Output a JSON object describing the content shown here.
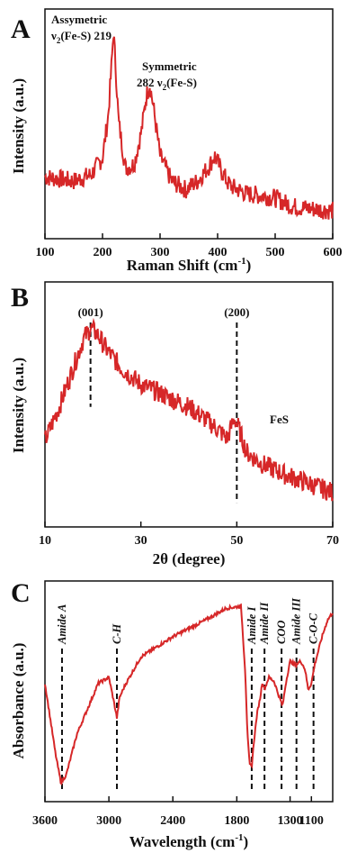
{
  "colors": {
    "line": "#d62728",
    "axis": "#111111",
    "marker": "#111111"
  },
  "chart_data": [
    {
      "type": "line",
      "panel": "A",
      "title": "",
      "xlabel": "Raman Shift (cm",
      "xlabel_sup": "-1",
      "xlabel_tail": ")",
      "ylabel": "Intensity (a.u.)",
      "xlim": [
        100,
        600
      ],
      "ylim": [
        0,
        1
      ],
      "y_ticks_shown": false,
      "xticks": [
        "100",
        "200",
        "300",
        "400",
        "500",
        "600"
      ],
      "xtick_values": [
        100,
        200,
        300,
        400,
        500,
        600
      ],
      "series": [
        {
          "x": [
            100,
            150,
            180,
            200,
            210,
            216,
            219,
            222,
            228,
            240,
            255,
            268,
            276,
            282,
            288,
            300,
            320,
            345,
            365,
            385,
            395,
            405,
            420,
            450,
            480,
            500,
            530,
            560,
            600
          ],
          "y": [
            0.26,
            0.24,
            0.27,
            0.35,
            0.55,
            0.8,
            0.95,
            0.82,
            0.52,
            0.3,
            0.32,
            0.48,
            0.64,
            0.7,
            0.6,
            0.36,
            0.24,
            0.2,
            0.24,
            0.31,
            0.36,
            0.3,
            0.22,
            0.18,
            0.17,
            0.16,
            0.12,
            0.11,
            0.1
          ]
        }
      ],
      "annotations": [
        {
          "line1": "Assymetric",
          "line2_pre": "ν",
          "line2_sub": "2",
          "line2_post": "(Fe-S) 219"
        },
        {
          "line1": "Symmetric",
          "line2_pre": "282 ν",
          "line2_sub": "2",
          "line2_post": "(Fe-S)"
        }
      ]
    },
    {
      "type": "line",
      "panel": "B",
      "title": "",
      "xlabel": "2θ (degree)",
      "ylabel": "Intensity (a.u.)",
      "xlim": [
        10,
        70
      ],
      "ylim": [
        0,
        1
      ],
      "y_ticks_shown": false,
      "xticks": [
        "10",
        "30",
        "50",
        "70"
      ],
      "xtick_values": [
        10,
        30,
        50,
        70
      ],
      "series": [
        {
          "name": "FeS",
          "x": [
            10,
            13,
            16,
            18,
            19.5,
            21,
            23,
            26,
            30,
            35,
            40,
            45,
            48,
            49.5,
            50.5,
            52,
            55,
            60,
            65,
            70
          ],
          "y": [
            0.35,
            0.5,
            0.68,
            0.8,
            0.85,
            0.82,
            0.75,
            0.67,
            0.6,
            0.55,
            0.5,
            0.42,
            0.36,
            0.45,
            0.4,
            0.3,
            0.25,
            0.2,
            0.16,
            0.12
          ]
        }
      ],
      "peaks": [
        {
          "label": "(001)",
          "x": 19.5
        },
        {
          "label": "(200)",
          "x": 50
        }
      ],
      "legend_text": "FeS"
    },
    {
      "type": "line",
      "panel": "C",
      "title": "",
      "xlabel": "Wavelength (cm",
      "xlabel_sup": "-1",
      "xlabel_tail": ")",
      "ylabel": "Absorbance (a.u.)",
      "xlim": [
        3600,
        900
      ],
      "ylim": [
        0,
        1
      ],
      "y_ticks_shown": false,
      "xticks": [
        "3600",
        "3000",
        "2400",
        "1800",
        "1300",
        "1100"
      ],
      "xtick_values": [
        3600,
        3000,
        2400,
        1800,
        1300,
        1100
      ],
      "series": [
        {
          "x": [
            3600,
            3500,
            3450,
            3400,
            3300,
            3100,
            3000,
            2950,
            2925,
            2900,
            2850,
            2700,
            2400,
            2100,
            1900,
            1760,
            1720,
            1700,
            1680,
            1660,
            1640,
            1610,
            1580,
            1560,
            1540,
            1500,
            1450,
            1400,
            1370,
            1340,
            1300,
            1250,
            1200,
            1160,
            1130,
            1100,
            1070,
            1030,
            1000,
            950,
            900
          ],
          "y": [
            0.55,
            0.2,
            0.06,
            0.1,
            0.3,
            0.55,
            0.58,
            0.45,
            0.38,
            0.48,
            0.54,
            0.68,
            0.78,
            0.86,
            0.92,
            0.93,
            0.6,
            0.3,
            0.15,
            0.14,
            0.26,
            0.4,
            0.48,
            0.56,
            0.52,
            0.58,
            0.56,
            0.48,
            0.44,
            0.55,
            0.66,
            0.64,
            0.66,
            0.62,
            0.52,
            0.55,
            0.64,
            0.72,
            0.78,
            0.86,
            0.9
          ]
        }
      ],
      "peaks": [
        {
          "label": "Amide A",
          "x": 3440
        },
        {
          "label": "C-H",
          "x": 2925
        },
        {
          "label": "Amide I",
          "x": 1660
        },
        {
          "label": "Amide II",
          "x": 1540
        },
        {
          "label": "COO",
          "x": 1380
        },
        {
          "label": "Amide III",
          "x": 1240
        },
        {
          "label": "C-O-C",
          "x": 1080
        }
      ],
      "peak_text": {
        "c_h_suffix": "C-H"
      }
    }
  ]
}
